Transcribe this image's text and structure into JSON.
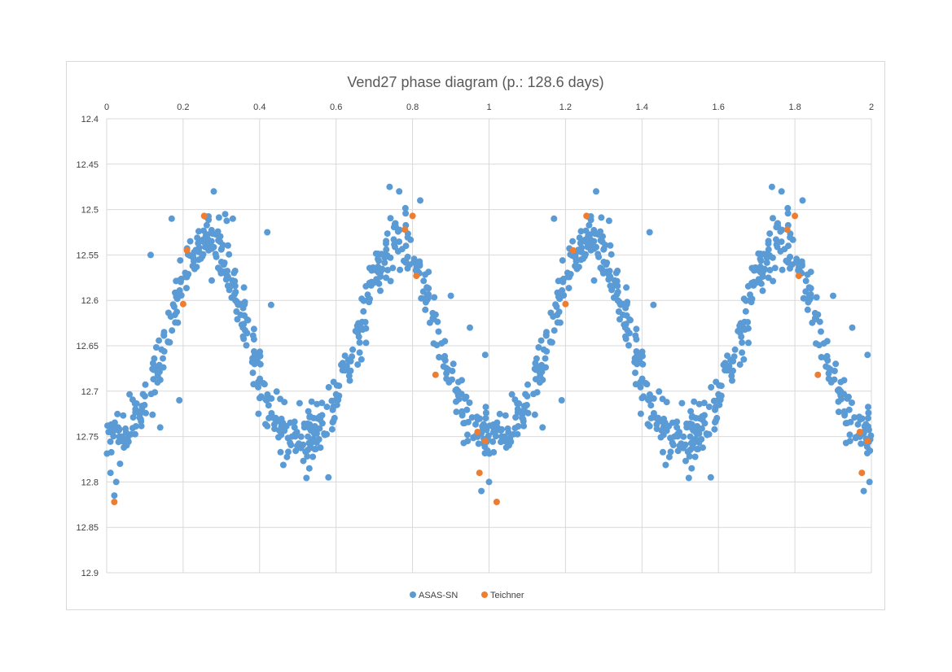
{
  "chart_data": {
    "type": "scatter",
    "title": "Vend27 phase diagram (p.: 128.6 days)",
    "xlabel": "",
    "ylabel": "",
    "xlim": [
      0,
      2
    ],
    "ylim": [
      12.4,
      12.9
    ],
    "y_reversed": true,
    "x_axis_position": "top",
    "grid": true,
    "legend": "bottom",
    "x_ticks": [
      "0",
      "0.2",
      "0.4",
      "0.6",
      "0.8",
      "1",
      "1.2",
      "1.4",
      "1.6",
      "1.8",
      "2"
    ],
    "y_ticks": [
      "12.4",
      "12.45",
      "12.5",
      "12.55",
      "12.6",
      "12.65",
      "12.7",
      "12.75",
      "12.8",
      "12.85",
      "12.9"
    ],
    "light_curve": {
      "period_phase": 1.0,
      "mean": 12.655,
      "harmonics": [
        {
          "n": 2,
          "amplitude": 0.11,
          "phase_of_max_brightness": 0.26
        },
        {
          "n": 4,
          "amplitude": 0.012,
          "phase_of_max_brightness": 0.02
        }
      ],
      "scatter_sd": 0.016,
      "point_count_per_cycle": 560
    },
    "series": [
      {
        "name": "ASAS-SN",
        "color": "#5b9bd5",
        "points": [
          [
            0.03,
            12.74
          ],
          [
            0.005,
            12.745
          ],
          [
            0.01,
            12.79
          ],
          [
            0.02,
            12.815
          ],
          [
            0.025,
            12.8
          ],
          [
            0.04,
            12.755
          ],
          [
            0.035,
            12.78
          ],
          [
            0.28,
            12.48
          ],
          [
            0.17,
            12.51
          ],
          [
            0.115,
            12.55
          ],
          [
            0.14,
            12.74
          ],
          [
            0.19,
            12.71
          ],
          [
            0.31,
            12.505
          ],
          [
            0.33,
            12.51
          ],
          [
            0.42,
            12.525
          ],
          [
            0.43,
            12.605
          ],
          [
            0.58,
            12.795
          ],
          [
            0.53,
            12.785
          ],
          [
            0.74,
            12.475
          ],
          [
            0.765,
            12.48
          ],
          [
            0.82,
            12.49
          ],
          [
            0.9,
            12.595
          ],
          [
            0.92,
            12.69
          ],
          [
            0.95,
            12.63
          ],
          [
            0.98,
            12.81
          ],
          [
            0.99,
            12.66
          ],
          [
            1.0,
            12.8
          ],
          [
            1.28,
            12.48
          ],
          [
            1.17,
            12.51
          ],
          [
            1.14,
            12.74
          ],
          [
            1.19,
            12.71
          ],
          [
            1.42,
            12.525
          ],
          [
            1.43,
            12.605
          ],
          [
            1.58,
            12.795
          ],
          [
            1.53,
            12.785
          ],
          [
            1.74,
            12.475
          ],
          [
            1.765,
            12.48
          ],
          [
            1.82,
            12.49
          ],
          [
            1.9,
            12.595
          ],
          [
            1.92,
            12.69
          ],
          [
            1.95,
            12.63
          ],
          [
            1.98,
            12.81
          ],
          [
            1.99,
            12.66
          ],
          [
            1.995,
            12.8
          ]
        ]
      },
      {
        "name": "Teichner",
        "color": "#ed7d31",
        "points": [
          [
            0.02,
            12.822
          ],
          [
            0.21,
            12.545
          ],
          [
            0.2,
            12.604
          ],
          [
            0.255,
            12.507
          ],
          [
            0.78,
            12.522
          ],
          [
            0.8,
            12.507
          ],
          [
            0.81,
            12.573
          ],
          [
            0.86,
            12.682
          ],
          [
            0.97,
            12.745
          ],
          [
            0.975,
            12.79
          ],
          [
            0.99,
            12.755
          ],
          [
            1.02,
            12.822
          ],
          [
            1.2,
            12.604
          ],
          [
            1.22,
            12.545
          ],
          [
            1.255,
            12.507
          ],
          [
            1.78,
            12.522
          ],
          [
            1.8,
            12.507
          ],
          [
            1.81,
            12.573
          ],
          [
            1.86,
            12.682
          ],
          [
            1.97,
            12.745
          ],
          [
            1.975,
            12.79
          ],
          [
            1.99,
            12.755
          ]
        ]
      }
    ]
  }
}
